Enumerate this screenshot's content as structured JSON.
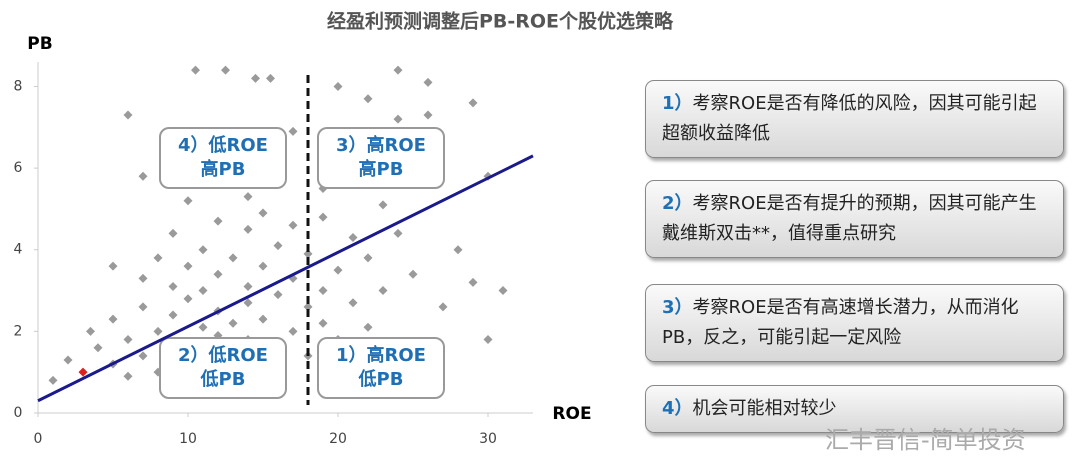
{
  "chart_data": {
    "type": "scatter",
    "title": "经盈利预测调整后PB-ROE个股优选策略",
    "x_label": "ROE",
    "y_label": "PB",
    "xlim": [
      0,
      33
    ],
    "ylim": [
      0,
      8.6
    ],
    "xticks": [
      0,
      10,
      20,
      30
    ],
    "yticks": [
      0,
      2,
      4,
      6,
      8
    ],
    "series": [
      {
        "color": "#9a9a9a",
        "x": [
          1,
          2,
          4,
          5,
          5,
          6,
          6,
          6,
          7,
          7,
          7,
          8,
          8,
          8,
          9,
          9,
          9,
          9,
          10,
          10,
          10,
          10,
          10,
          11,
          11,
          11,
          11,
          12,
          12,
          12,
          12,
          12,
          13,
          13,
          13,
          13,
          14,
          14,
          14,
          14,
          14,
          15,
          15,
          15,
          15,
          15,
          16,
          16,
          16,
          16,
          17,
          17,
          17,
          17,
          18,
          18,
          18,
          19,
          19,
          19,
          19,
          20,
          20,
          20,
          21,
          21,
          22,
          22,
          23,
          23,
          24,
          24,
          25,
          26,
          27,
          28,
          29,
          29,
          30,
          31,
          30,
          10.5,
          12.5,
          14.5,
          15.5,
          20,
          22,
          24,
          26,
          7,
          5,
          3.5,
          26,
          23
        ],
        "values": [
          0.8,
          1.3,
          1.6,
          1.2,
          2.3,
          0.9,
          1.8,
          7.3,
          2.6,
          1.4,
          3.3,
          2.0,
          3.8,
          1.0,
          2.4,
          3.1,
          4.4,
          1.5,
          2.8,
          5.2,
          1.2,
          3.6,
          6.8,
          2.1,
          4.0,
          3.0,
          1.6,
          2.5,
          3.4,
          4.7,
          1.9,
          5.8,
          2.2,
          3.8,
          1.4,
          6.2,
          2.7,
          3.1,
          4.5,
          1.8,
          5.3,
          2.3,
          3.6,
          1.2,
          4.9,
          6.5,
          2.9,
          4.1,
          1.6,
          5.7,
          3.3,
          2.0,
          4.6,
          6.9,
          2.6,
          3.9,
          1.4,
          3.0,
          4.8,
          2.2,
          5.5,
          3.5,
          1.8,
          6.3,
          2.7,
          4.3,
          3.8,
          2.1,
          5.1,
          3.0,
          4.4,
          7.2,
          3.4,
          5.6,
          2.6,
          4.0,
          7.6,
          3.2,
          1.8,
          3.0,
          5.8,
          8.4,
          8.4,
          8.2,
          8.2,
          8.0,
          7.7,
          8.4,
          8.1,
          5.8,
          3.6,
          2.0,
          7.3,
          6.4
        ]
      },
      {
        "color": "#e0201b",
        "x": [
          3
        ],
        "values": [
          1.0
        ]
      }
    ],
    "trend_line": {
      "color": "#1a1a8c",
      "x": [
        0,
        33
      ],
      "values": [
        0.3,
        6.3
      ]
    },
    "divider_x": 18,
    "quadrant_labels": [
      [
        "4）低ROE",
        "高PB"
      ],
      [
        "3）高ROE",
        "高PB"
      ],
      [
        "2）低ROE",
        "低PB"
      ],
      [
        "1）高ROE",
        "低PB"
      ]
    ]
  },
  "side_notes": [
    {
      "number": "1）",
      "text": "考察ROE是否有降低的风险，因其可能引起超额收益降低"
    },
    {
      "number": "2）",
      "text": "考察ROE是否有提升的预期，因其可能产生戴维斯双击**，值得重点研究"
    },
    {
      "number": "3）",
      "text": "考察ROE是否有高速增长潜力，从而消化PB，反之，可能引起一定风险"
    },
    {
      "number": "4）",
      "text": "机会可能相对较少"
    }
  ],
  "watermark": "汇丰晋信-简单投资"
}
